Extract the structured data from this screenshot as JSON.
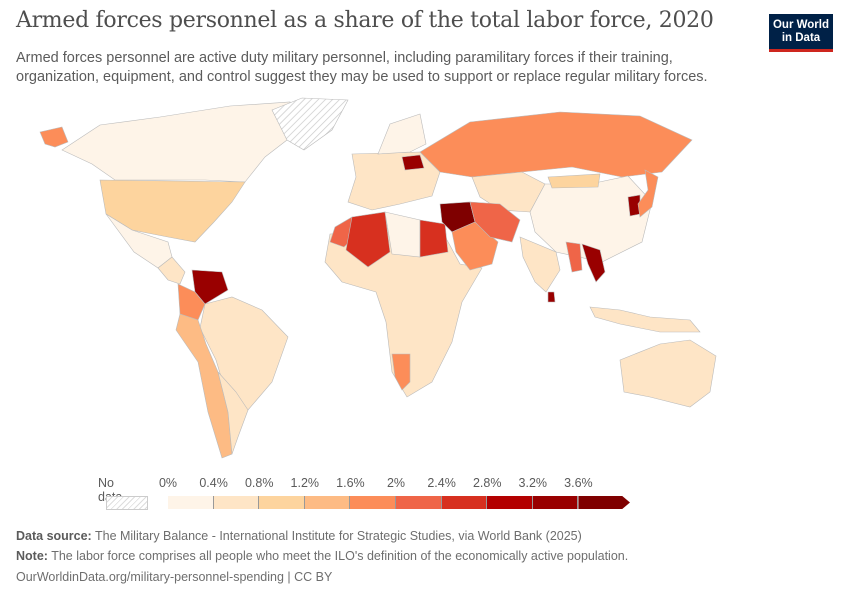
{
  "title": "Armed forces personnel as a share of the total labor force, 2020",
  "subtitle": "Armed forces personnel are active duty military personnel, including paramilitary forces if their training, organization, equipment, and control suggest they may be used to support or replace regular military forces.",
  "logo": {
    "line1": "Our World",
    "line2": "in Data",
    "bg": "#002147",
    "accent": "#ce261e"
  },
  "legend": {
    "no_data_label": "No data",
    "ticks": [
      "0%",
      "0.4%",
      "0.8%",
      "1.2%",
      "1.6%",
      "2%",
      "2.4%",
      "2.8%",
      "3.2%",
      "3.6%"
    ],
    "bin_colors": [
      "#fef4e8",
      "#fee5c6",
      "#fdd49e",
      "#fdbb84",
      "#fc8d59",
      "#ef6548",
      "#d7301f",
      "#b30000",
      "#990000",
      "#7f0000"
    ]
  },
  "map": {
    "regions": [
      {
        "name": "alaska",
        "color": "#fc8d59"
      },
      {
        "name": "canada",
        "color": "#fef4e8"
      },
      {
        "name": "greenland",
        "color": "nodata"
      },
      {
        "name": "united-states",
        "color": "#fdd49e"
      },
      {
        "name": "mexico",
        "color": "#fef4e8"
      },
      {
        "name": "central-america",
        "color": "#fee5c6"
      },
      {
        "name": "venezuela",
        "color": "#990000"
      },
      {
        "name": "colombia",
        "color": "#fc8d59"
      },
      {
        "name": "brazil",
        "color": "#fee5c6"
      },
      {
        "name": "andes-chile",
        "color": "#fdbb84"
      },
      {
        "name": "argentina",
        "color": "#fee5c6"
      },
      {
        "name": "europe",
        "color": "#fee5c6"
      },
      {
        "name": "scandinavia",
        "color": "#fef4e8"
      },
      {
        "name": "belarus",
        "color": "#990000"
      },
      {
        "name": "russia",
        "color": "#fc8d59"
      },
      {
        "name": "central-asia",
        "color": "#fee5c6"
      },
      {
        "name": "china",
        "color": "#fef4e8"
      },
      {
        "name": "mongolia",
        "color": "#fdd49e"
      },
      {
        "name": "africa",
        "color": "#fee5c6"
      },
      {
        "name": "morocco",
        "color": "#ef6548"
      },
      {
        "name": "algeria",
        "color": "#d7301f"
      },
      {
        "name": "libya",
        "color": "#fef4e8"
      },
      {
        "name": "egypt",
        "color": "#d7301f"
      },
      {
        "name": "namibia",
        "color": "#fc8d59"
      },
      {
        "name": "levant-iraq",
        "color": "#7f0000"
      },
      {
        "name": "saudi-arabia",
        "color": "#fc8d59"
      },
      {
        "name": "iran",
        "color": "#ef6548"
      },
      {
        "name": "india",
        "color": "#fee5c6"
      },
      {
        "name": "sri-lanka",
        "color": "#990000"
      },
      {
        "name": "myanmar",
        "color": "#ef6548"
      },
      {
        "name": "laos-vietnam",
        "color": "#990000"
      },
      {
        "name": "korea",
        "color": "#990000"
      },
      {
        "name": "japan",
        "color": "#fc8d59"
      },
      {
        "name": "indonesia",
        "color": "#fee5c6"
      },
      {
        "name": "australia",
        "color": "#fee5c6"
      }
    ]
  },
  "footer": {
    "source_label": "Data source:",
    "source": "The Military Balance - International Institute for Strategic Studies, via World Bank (2025)",
    "note_label": "Note:",
    "note": "The labor force comprises all people who meet the ILO's definition of the economically active population.",
    "link": "OurWorldinData.org/military-personnel-spending | CC BY"
  }
}
